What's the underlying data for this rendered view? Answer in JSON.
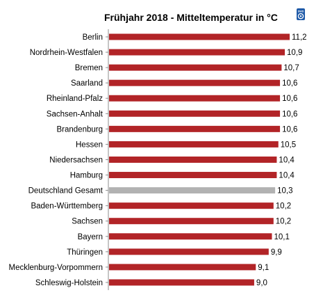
{
  "chart_data": {
    "type": "bar",
    "orientation": "horizontal",
    "title": "Frühjahr 2018 - Mitteltemperatur in °C",
    "logo_text": "DWD",
    "categories": [
      "Berlin",
      "Nordrhein-Westfalen",
      "Bremen",
      "Saarland",
      "Rheinland-Pfalz",
      "Sachsen-Anhalt",
      "Brandenburg",
      "Hessen",
      "Niedersachsen",
      "Hamburg",
      "Deutschland Gesamt",
      "Baden-Württemberg",
      "Sachsen",
      "Bayern",
      "Thüringen",
      "Mecklenburg-Vorpommern",
      "Schleswig-Holstein"
    ],
    "values": [
      11.2,
      10.9,
      10.7,
      10.6,
      10.6,
      10.6,
      10.6,
      10.5,
      10.4,
      10.4,
      10.3,
      10.2,
      10.2,
      10.1,
      9.9,
      9.1,
      9.0
    ],
    "value_labels": [
      "11,2",
      "10,9",
      "10,7",
      "10,6",
      "10,6",
      "10,6",
      "10,6",
      "10,5",
      "10,4",
      "10,4",
      "10,3",
      "10,2",
      "10,2",
      "10,1",
      "9,9",
      "9,1",
      "9,0"
    ],
    "highlight_category": "Deutschland Gesamt",
    "xlim": [
      0,
      11.2
    ],
    "grid": false,
    "legend": "none",
    "colors": {
      "bar": "#b22427",
      "highlight": "#b2b2b2",
      "axis": "#8c8c8c",
      "logo": "#1f5aa8"
    }
  }
}
